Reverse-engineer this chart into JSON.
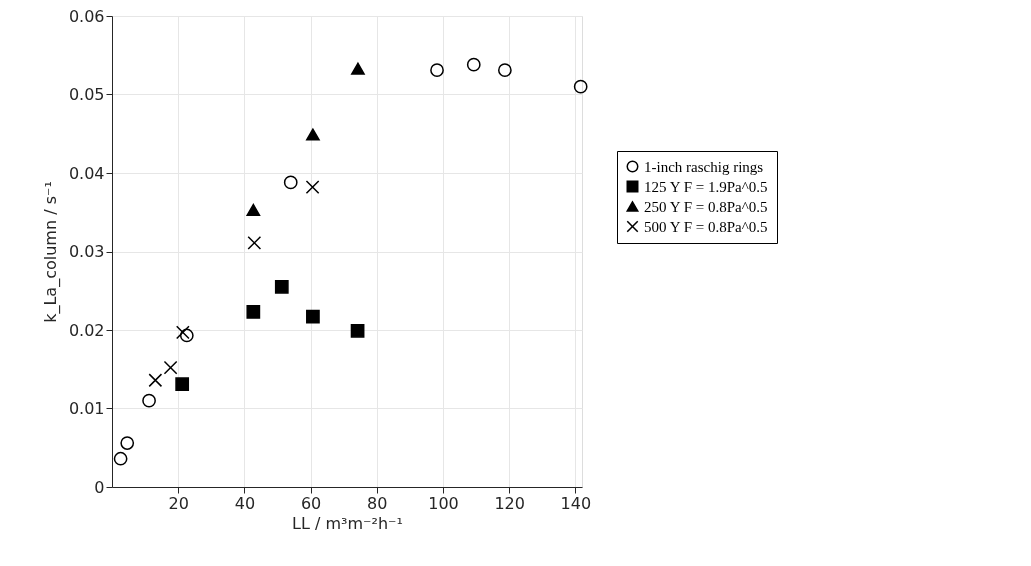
{
  "chart_data": {
    "type": "scatter",
    "xlabel": "LL / m³m⁻²h⁻¹",
    "ylabel": "k_La_column / s⁻¹",
    "xlim": [
      0,
      142
    ],
    "xticks": [
      20,
      40,
      60,
      80,
      100,
      120,
      140
    ],
    "ylim": [
      0,
      0.06
    ],
    "yticks": [
      0,
      0.01,
      0.02,
      0.03,
      0.04,
      0.05,
      0.06
    ],
    "grid": true,
    "legend": "right",
    "series": [
      {
        "name": "1-inch raschig rings",
        "color": "#000000",
        "marker": "circle",
        "x": [
          2.6,
          4.6,
          11.2,
          22.6,
          54.0,
          98.2,
          109.3,
          118.7,
          141.6
        ],
        "values": [
          0.0036,
          0.0056,
          0.011,
          0.0193,
          0.0388,
          0.0531,
          0.0538,
          0.0531,
          0.051
        ]
      },
      {
        "name": "125 Y F = 1.9Pa^0.5",
        "color": "#000000",
        "marker": "square",
        "x": [
          21.2,
          42.7,
          51.3,
          60.7,
          74.2
        ],
        "values": [
          0.0131,
          0.0223,
          0.0255,
          0.0217,
          0.0199
        ]
      },
      {
        "name": "250 Y F = 0.8Pa^0.5",
        "color": "#000000",
        "marker": "triangle",
        "x": [
          42.7,
          60.7,
          74.3
        ],
        "values": [
          0.0353,
          0.0449,
          0.0533
        ]
      },
      {
        "name": "500 Y F = 0.8Pa^0.5",
        "color": "#000000",
        "marker": "cross",
        "x": [
          13.1,
          17.7,
          21.4,
          43.0,
          60.6
        ],
        "values": [
          0.0136,
          0.0152,
          0.0197,
          0.0311,
          0.0382
        ]
      }
    ]
  }
}
